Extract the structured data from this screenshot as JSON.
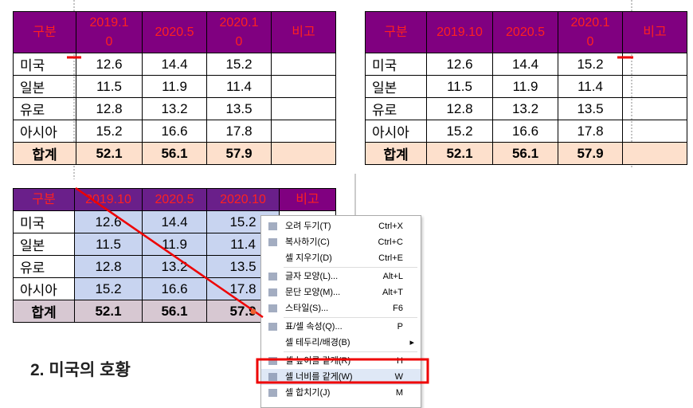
{
  "tables": [
    {
      "header": [
        "구분",
        "2019.10",
        "2020.5",
        "2020.10",
        "비고"
      ],
      "rows": [
        [
          "미국",
          12.6,
          14.4,
          15.2
        ],
        [
          "일본",
          11.5,
          11.9,
          11.4
        ],
        [
          "유로",
          12.8,
          13.2,
          13.5
        ],
        [
          "아시아",
          15.2,
          16.6,
          17.8
        ]
      ],
      "total": [
        "합계",
        52.1,
        56.1,
        57.9
      ]
    },
    {
      "header": [
        "구분",
        "2019.10",
        "2020.5",
        "2020.10",
        "비고"
      ],
      "rows": [
        [
          "미국",
          12.6,
          14.4,
          15.2
        ],
        [
          "일본",
          11.5,
          11.9,
          11.4
        ],
        [
          "유로",
          12.8,
          13.2,
          13.5
        ],
        [
          "아시아",
          15.2,
          16.6,
          17.8
        ]
      ],
      "total": [
        "합계",
        52.1,
        56.1,
        57.9
      ]
    },
    {
      "header": [
        "구분",
        "2019.10",
        "2020.5",
        "2020.10",
        "비고"
      ],
      "rows": [
        [
          "미국",
          12.6,
          14.4,
          15.2
        ],
        [
          "일본",
          11.5,
          11.9,
          11.4
        ],
        [
          "유로",
          12.8,
          13.2,
          13.5
        ],
        [
          "아시아",
          15.2,
          16.6,
          17.8
        ]
      ],
      "total": [
        "합계",
        52.1,
        56.1,
        57.9
      ]
    }
  ],
  "context_menu": {
    "items": [
      {
        "label": "오려 두기(T)",
        "shortcut": "Ctrl+X"
      },
      {
        "label": "복사하기(C)",
        "shortcut": "Ctrl+C"
      },
      {
        "label": "셀 지우기(D)",
        "shortcut": "Ctrl+E"
      },
      {
        "label": "글자 모양(L)...",
        "shortcut": "Alt+L"
      },
      {
        "label": "문단 모양(M)...",
        "shortcut": "Alt+T"
      },
      {
        "label": "스타일(S)...",
        "shortcut": "F6"
      },
      {
        "label": "표/셀 속성(Q)...",
        "shortcut": "P"
      },
      {
        "label": "셀 테두리/배경(B)"
      },
      {
        "label": "셀 높이를 같게(R)",
        "shortcut": "H"
      },
      {
        "label": "셀 너비를 같게(W)",
        "shortcut": "W"
      },
      {
        "label": "셀 합치기(J)",
        "shortcut": "M"
      }
    ]
  },
  "heading": "2. 미국의 호황"
}
